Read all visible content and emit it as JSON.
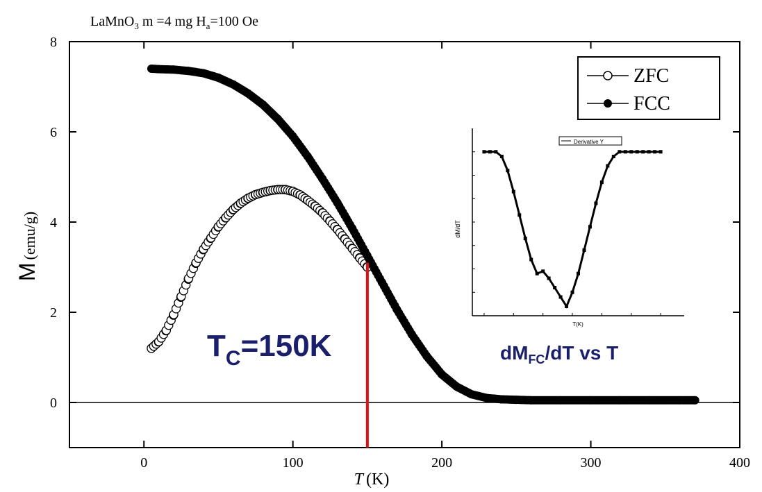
{
  "header": {
    "sample_text": "LaMnO",
    "sample_sub": "3",
    "mass_text": " m =4 mg  H",
    "field_sub": "a",
    "field_text": "=100 Oe"
  },
  "chart_data": {
    "type": "scatter",
    "xlabel_main": "T",
    "xlabel_unit": "(K)",
    "ylabel_main": "M",
    "ylabel_unit": "(emu/g)",
    "xlim": [
      -50,
      400
    ],
    "ylim": [
      -1,
      8
    ],
    "xticks": [
      0,
      100,
      200,
      300,
      400
    ],
    "yticks": [
      0,
      2,
      4,
      6,
      8
    ],
    "legend": {
      "placement": "top-right",
      "entries": [
        "ZFC",
        "FCC"
      ]
    },
    "series": [
      {
        "name": "ZFC",
        "marker": "open-circle",
        "x": [
          5,
          10,
          15,
          20,
          25,
          30,
          35,
          40,
          45,
          50,
          55,
          60,
          65,
          70,
          75,
          80,
          85,
          90,
          95,
          100,
          105,
          110,
          115,
          120,
          125,
          130,
          135,
          140,
          145,
          150
        ],
        "y": [
          1.2,
          1.35,
          1.6,
          1.95,
          2.35,
          2.75,
          3.1,
          3.4,
          3.65,
          3.9,
          4.1,
          4.28,
          4.42,
          4.53,
          4.61,
          4.66,
          4.7,
          4.72,
          4.72,
          4.68,
          4.6,
          4.48,
          4.35,
          4.2,
          4.02,
          3.83,
          3.62,
          3.41,
          3.2,
          3.0
        ]
      },
      {
        "name": "FCC",
        "marker": "filled-circle",
        "x": [
          5,
          10,
          20,
          30,
          40,
          50,
          60,
          70,
          80,
          90,
          100,
          110,
          120,
          130,
          140,
          150,
          160,
          170,
          180,
          190,
          200,
          210,
          220,
          230,
          240,
          250,
          260,
          280,
          300,
          320,
          340,
          360,
          370
        ],
        "y": [
          7.4,
          7.39,
          7.38,
          7.35,
          7.3,
          7.2,
          7.05,
          6.85,
          6.6,
          6.28,
          5.9,
          5.45,
          4.95,
          4.42,
          3.85,
          3.25,
          2.65,
          2.05,
          1.5,
          1.02,
          0.62,
          0.35,
          0.18,
          0.1,
          0.07,
          0.06,
          0.05,
          0.05,
          0.05,
          0.05,
          0.05,
          0.05,
          0.05
        ]
      }
    ],
    "annotations": {
      "tc_main": "T",
      "tc_sub": "C",
      "tc_value": "=150K",
      "tc_x": 150,
      "deriv_main": "dM",
      "deriv_sub": "FC",
      "deriv_rest": "/dT vs T"
    },
    "colors": {
      "tc_text": "#1a1f6b",
      "tc_line": "#e01010",
      "markers": "#000000"
    },
    "inset": {
      "type": "line",
      "ylabel": "dM/dT",
      "xlabel": "T(K)",
      "legend": "Derivative Y",
      "xlim": [
        -20,
        340
      ],
      "ylim": [
        -0.07,
        0.01
      ],
      "x": [
        0,
        10,
        20,
        30,
        40,
        50,
        60,
        70,
        80,
        90,
        100,
        110,
        120,
        130,
        140,
        150,
        160,
        170,
        180,
        190,
        200,
        210,
        220,
        230,
        240,
        250,
        260,
        270,
        280,
        290,
        300
      ],
      "y": [
        0.0,
        0.0,
        0.0,
        -0.002,
        -0.008,
        -0.017,
        -0.027,
        -0.037,
        -0.046,
        -0.052,
        -0.051,
        -0.054,
        -0.058,
        -0.062,
        -0.066,
        -0.06,
        -0.052,
        -0.042,
        -0.032,
        -0.022,
        -0.013,
        -0.006,
        -0.002,
        0.0,
        0.0,
        0.0,
        0.0,
        0.0,
        0.0,
        0.0,
        0.0
      ]
    }
  }
}
